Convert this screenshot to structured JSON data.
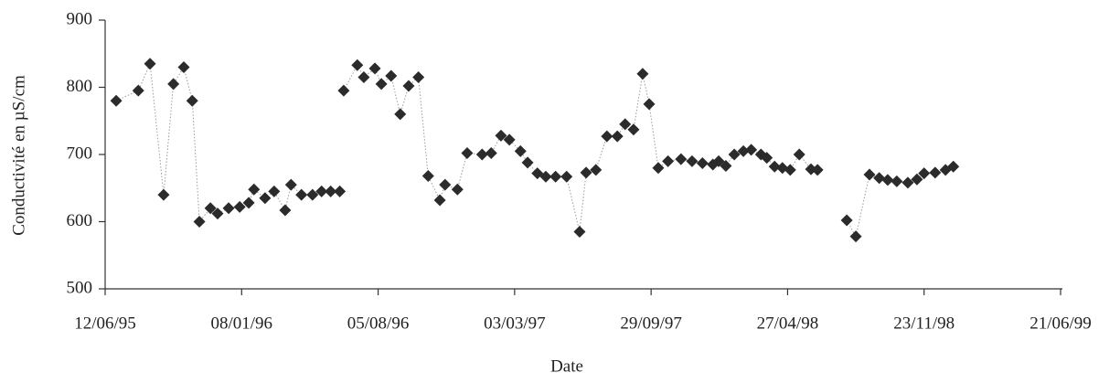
{
  "chart_data": {
    "type": "scatter-line",
    "xlabel": "Date",
    "ylabel": "Conductivité en µS/cm",
    "color": "#2b2b2b",
    "line_color": "#9a9a9a",
    "grid": false,
    "xlim": [
      "1995-06-12",
      "1999-06-21"
    ],
    "xticks": [
      {
        "value": "1995-06-12",
        "label": "12/06/95"
      },
      {
        "value": "1996-01-08",
        "label": "08/01/96"
      },
      {
        "value": "1996-08-05",
        "label": "05/08/96"
      },
      {
        "value": "1997-03-03",
        "label": "03/03/97"
      },
      {
        "value": "1997-09-29",
        "label": "29/09/97"
      },
      {
        "value": "1998-04-27",
        "label": "27/04/98"
      },
      {
        "value": "1998-11-23",
        "label": "23/11/98"
      },
      {
        "value": "1999-06-21",
        "label": "21/06/99"
      }
    ],
    "ylim": [
      500,
      900
    ],
    "yticks": [
      500,
      600,
      700,
      800,
      900
    ],
    "x": [
      "1995-06-29",
      "1995-08-02",
      "1995-08-20",
      "1995-09-10",
      "1995-09-25",
      "1995-10-11",
      "1995-10-24",
      "1995-11-04",
      "1995-11-21",
      "1995-12-02",
      "1995-12-19",
      "1996-01-05",
      "1996-01-19",
      "1996-01-27",
      "1996-02-13",
      "1996-02-27",
      "1996-03-15",
      "1996-03-24",
      "1996-04-09",
      "1996-04-26",
      "1996-05-10",
      "1996-05-24",
      "1996-06-07",
      "1996-06-10",
      "1996-06-13",
      "1996-07-04",
      "1996-07-14",
      "1996-07-31",
      "1996-08-10",
      "1996-08-25",
      "1996-09-08",
      "1996-09-21",
      "1996-10-06",
      "1996-10-21",
      "1996-11-08",
      "1996-11-16",
      "1996-12-05",
      "1996-12-20",
      "1997-01-12",
      "1997-01-26",
      "1997-02-10",
      "1997-02-23",
      "1997-03-12",
      "1997-03-23",
      "1997-04-07",
      "1997-04-20",
      "1997-05-05",
      "1997-05-22",
      "1997-06-11",
      "1997-06-21",
      "1997-07-06",
      "1997-07-23",
      "1997-08-08",
      "1997-08-20",
      "1997-09-02",
      "1997-09-16",
      "1997-09-26",
      "1997-10-10",
      "1997-10-25",
      "1997-11-14",
      "1997-12-01",
      "1997-12-17",
      "1998-01-02",
      "1998-01-11",
      "1998-01-22",
      "1998-02-04",
      "1998-02-18",
      "1998-03-02",
      "1998-03-17",
      "1998-03-26",
      "1998-04-07",
      "1998-04-19",
      "1998-05-01",
      "1998-05-15",
      "1998-06-02",
      "1998-06-12",
      "1998-07-04",
      "1998-07-27",
      "1998-08-10",
      "1998-08-31",
      "1998-09-15",
      "1998-09-28",
      "1998-10-12",
      "1998-10-29",
      "1998-11-12",
      "1998-11-23",
      "1998-12-10",
      "1998-12-26",
      "1999-01-07"
    ],
    "values": [
      780,
      795,
      835,
      640,
      805,
      830,
      780,
      600,
      620,
      612,
      620,
      622,
      628,
      648,
      635,
      645,
      617,
      655,
      640,
      640,
      645,
      645,
      645,
      null,
      795,
      833,
      815,
      828,
      805,
      817,
      760,
      802,
      815,
      668,
      632,
      655,
      648,
      702,
      700,
      702,
      728,
      722,
      705,
      688,
      672,
      667,
      667,
      667,
      585,
      673,
      677,
      727,
      727,
      745,
      737,
      820,
      775,
      680,
      690,
      693,
      690,
      687,
      685,
      690,
      683,
      700,
      705,
      707,
      700,
      695,
      682,
      680,
      677,
      700,
      678,
      677,
      null,
      602,
      578,
      670,
      665,
      662,
      660,
      658,
      663,
      672,
      673,
      677,
      682
    ]
  }
}
